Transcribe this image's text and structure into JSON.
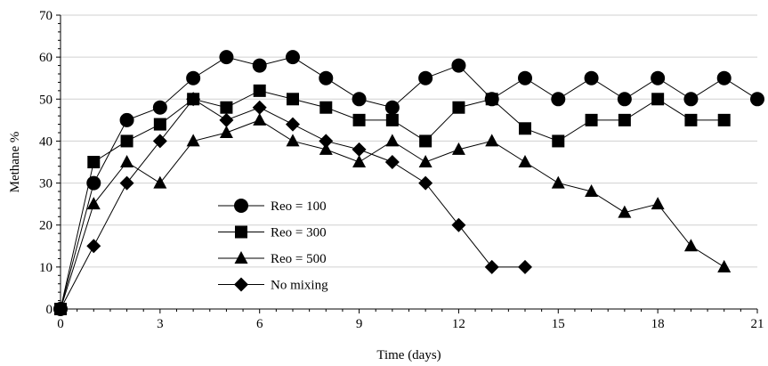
{
  "chart_data": {
    "type": "line",
    "xlabel": "Time (days)",
    "ylabel": "Methane %",
    "xlim": [
      0,
      21
    ],
    "ylim": [
      0,
      70
    ],
    "xticks": [
      0,
      3,
      6,
      9,
      12,
      15,
      18,
      21
    ],
    "yticks": [
      0,
      10,
      20,
      30,
      40,
      50,
      60,
      70
    ],
    "grid": "horizontal",
    "legend": "lower-center",
    "series": [
      {
        "name": "Reo = 100",
        "marker": "circle",
        "x": [
          0,
          1,
          2,
          3,
          4,
          5,
          6,
          7,
          8,
          9,
          10,
          11,
          12,
          13,
          14,
          15,
          16,
          17,
          18,
          19,
          20,
          21
        ],
        "values": [
          0,
          30,
          45,
          48,
          55,
          60,
          58,
          60,
          55,
          50,
          48,
          55,
          58,
          50,
          55,
          50,
          55,
          50,
          55,
          50,
          55,
          50
        ]
      },
      {
        "name": "Reo = 300",
        "marker": "square",
        "x": [
          0,
          1,
          2,
          3,
          4,
          5,
          6,
          7,
          8,
          9,
          10,
          11,
          12,
          13,
          14,
          15,
          16,
          17,
          18,
          19,
          20
        ],
        "values": [
          0,
          35,
          40,
          44,
          50,
          48,
          52,
          50,
          48,
          45,
          45,
          40,
          48,
          50,
          43,
          40,
          45,
          45,
          50,
          45,
          45
        ]
      },
      {
        "name": "Reo = 500",
        "marker": "triangle",
        "x": [
          0,
          1,
          2,
          3,
          4,
          5,
          6,
          7,
          8,
          9,
          10,
          11,
          12,
          13,
          14,
          15,
          16,
          17,
          18,
          19,
          20
        ],
        "values": [
          0,
          25,
          35,
          30,
          40,
          42,
          45,
          40,
          38,
          35,
          40,
          35,
          38,
          40,
          35,
          30,
          28,
          23,
          25,
          15,
          10
        ]
      },
      {
        "name": "No mixing",
        "marker": "diamond",
        "x": [
          0,
          1,
          2,
          3,
          4,
          5,
          6,
          7,
          8,
          9,
          10,
          11,
          12,
          13,
          14
        ],
        "values": [
          0,
          15,
          30,
          40,
          50,
          45,
          48,
          44,
          40,
          38,
          35,
          30,
          20,
          10,
          10
        ]
      }
    ]
  }
}
